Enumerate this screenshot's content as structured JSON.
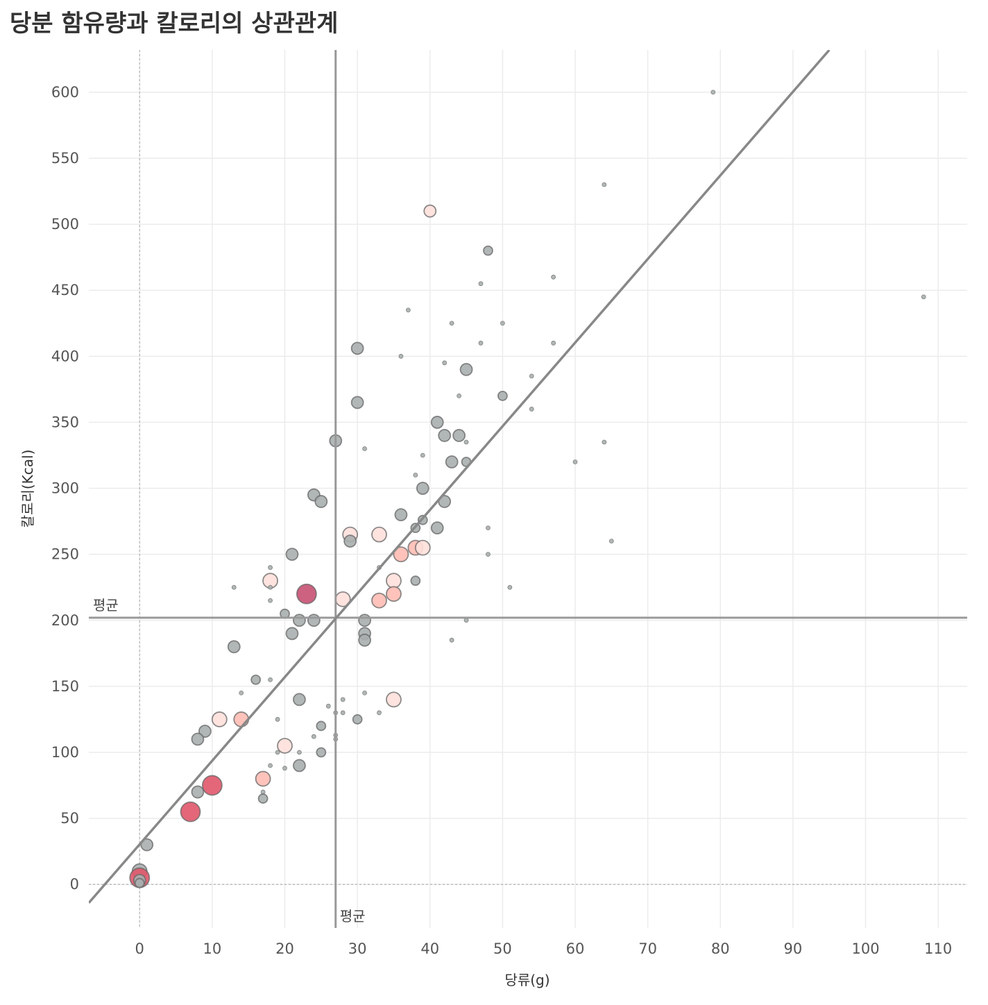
{
  "chart_data": {
    "type": "scatter",
    "title": "당분 함유량과 칼로리의 상관관계",
    "xlabel": "당류(g)",
    "ylabel": "칼로리(Kcal)",
    "xlim": [
      -7,
      114
    ],
    "ylim": [
      -33,
      632
    ],
    "xticks": [
      0,
      10,
      20,
      30,
      40,
      50,
      60,
      70,
      80,
      90,
      100,
      110
    ],
    "yticks": [
      0,
      50,
      100,
      150,
      200,
      250,
      300,
      350,
      400,
      450,
      500,
      550,
      600
    ],
    "grid": true,
    "mean_x": 27,
    "mean_y": 202,
    "mean_x_label": "평균",
    "mean_y_label": "평균",
    "trendline": {
      "x0": -7,
      "y0": -14,
      "x1": 95,
      "y1": 632,
      "color": "#888888"
    },
    "colors": {
      "gray": "#a9aeae",
      "pale": "#ffe0dc",
      "pink": "#ffbcb4",
      "red": "#e0566a",
      "magenta": "#c85072"
    },
    "points": [
      {
        "x": 79,
        "y": 600,
        "size": "xs",
        "color": "gray"
      },
      {
        "x": 64,
        "y": 530,
        "size": "xs",
        "color": "gray"
      },
      {
        "x": 108,
        "y": 445,
        "size": "xs",
        "color": "gray"
      },
      {
        "x": 40,
        "y": 510,
        "size": "m",
        "color": "pale"
      },
      {
        "x": 48,
        "y": 480,
        "size": "s",
        "color": "gray"
      },
      {
        "x": 57,
        "y": 460,
        "size": "xs",
        "color": "gray"
      },
      {
        "x": 47,
        "y": 455,
        "size": "xs",
        "color": "gray"
      },
      {
        "x": 37,
        "y": 435,
        "size": "xs",
        "color": "gray"
      },
      {
        "x": 43,
        "y": 425,
        "size": "xs",
        "color": "gray"
      },
      {
        "x": 50,
        "y": 425,
        "size": "xs",
        "color": "gray"
      },
      {
        "x": 47,
        "y": 410,
        "size": "xs",
        "color": "gray"
      },
      {
        "x": 57,
        "y": 410,
        "size": "xs",
        "color": "gray"
      },
      {
        "x": 30,
        "y": 406,
        "size": "m",
        "color": "gray"
      },
      {
        "x": 36,
        "y": 400,
        "size": "xs",
        "color": "gray"
      },
      {
        "x": 42,
        "y": 395,
        "size": "xs",
        "color": "gray"
      },
      {
        "x": 45,
        "y": 390,
        "size": "m",
        "color": "gray"
      },
      {
        "x": 54,
        "y": 385,
        "size": "xs",
        "color": "gray"
      },
      {
        "x": 50,
        "y": 370,
        "size": "s",
        "color": "gray"
      },
      {
        "x": 44,
        "y": 370,
        "size": "xs",
        "color": "gray"
      },
      {
        "x": 30,
        "y": 365,
        "size": "m",
        "color": "gray"
      },
      {
        "x": 54,
        "y": 360,
        "size": "xs",
        "color": "gray"
      },
      {
        "x": 41,
        "y": 350,
        "size": "m",
        "color": "gray"
      },
      {
        "x": 42,
        "y": 340,
        "size": "m",
        "color": "gray"
      },
      {
        "x": 44,
        "y": 340,
        "size": "m",
        "color": "gray"
      },
      {
        "x": 27,
        "y": 336,
        "size": "m",
        "color": "gray"
      },
      {
        "x": 45,
        "y": 335,
        "size": "xs",
        "color": "gray"
      },
      {
        "x": 64,
        "y": 335,
        "size": "xs",
        "color": "gray"
      },
      {
        "x": 31,
        "y": 330,
        "size": "xs",
        "color": "gray"
      },
      {
        "x": 39,
        "y": 325,
        "size": "xs",
        "color": "gray"
      },
      {
        "x": 43,
        "y": 320,
        "size": "m",
        "color": "gray"
      },
      {
        "x": 45,
        "y": 320,
        "size": "s",
        "color": "gray"
      },
      {
        "x": 60,
        "y": 320,
        "size": "xs",
        "color": "gray"
      },
      {
        "x": 38,
        "y": 310,
        "size": "xs",
        "color": "gray"
      },
      {
        "x": 39,
        "y": 300,
        "size": "m",
        "color": "gray"
      },
      {
        "x": 24,
        "y": 295,
        "size": "m",
        "color": "gray"
      },
      {
        "x": 25,
        "y": 290,
        "size": "m",
        "color": "gray"
      },
      {
        "x": 42,
        "y": 290,
        "size": "m",
        "color": "gray"
      },
      {
        "x": 36,
        "y": 280,
        "size": "m",
        "color": "gray"
      },
      {
        "x": 39,
        "y": 276,
        "size": "s",
        "color": "gray"
      },
      {
        "x": 38,
        "y": 270,
        "size": "s",
        "color": "gray"
      },
      {
        "x": 41,
        "y": 270,
        "size": "m",
        "color": "gray"
      },
      {
        "x": 48,
        "y": 270,
        "size": "xs",
        "color": "gray"
      },
      {
        "x": 29,
        "y": 265,
        "size": "l",
        "color": "pale"
      },
      {
        "x": 33,
        "y": 265,
        "size": "l",
        "color": "pale"
      },
      {
        "x": 29,
        "y": 260,
        "size": "m",
        "color": "gray"
      },
      {
        "x": 65,
        "y": 260,
        "size": "xs",
        "color": "gray"
      },
      {
        "x": 38,
        "y": 255,
        "size": "l",
        "color": "pink"
      },
      {
        "x": 39,
        "y": 255,
        "size": "l",
        "color": "pale"
      },
      {
        "x": 36,
        "y": 250,
        "size": "l",
        "color": "pink"
      },
      {
        "x": 21,
        "y": 250,
        "size": "m",
        "color": "gray"
      },
      {
        "x": 48,
        "y": 250,
        "size": "xs",
        "color": "gray"
      },
      {
        "x": 18,
        "y": 240,
        "size": "xs",
        "color": "gray"
      },
      {
        "x": 33,
        "y": 240,
        "size": "xs",
        "color": "gray"
      },
      {
        "x": 18,
        "y": 230,
        "size": "l",
        "color": "pale"
      },
      {
        "x": 35,
        "y": 230,
        "size": "l",
        "color": "pale"
      },
      {
        "x": 38,
        "y": 230,
        "size": "s",
        "color": "gray"
      },
      {
        "x": 13,
        "y": 225,
        "size": "xs",
        "color": "gray"
      },
      {
        "x": 18,
        "y": 225,
        "size": "xs",
        "color": "gray"
      },
      {
        "x": 51,
        "y": 225,
        "size": "xs",
        "color": "gray"
      },
      {
        "x": 23,
        "y": 220,
        "size": "xl",
        "color": "magenta"
      },
      {
        "x": 35,
        "y": 220,
        "size": "l",
        "color": "pink"
      },
      {
        "x": 28,
        "y": 216,
        "size": "l",
        "color": "pale"
      },
      {
        "x": 33,
        "y": 215,
        "size": "l",
        "color": "pink"
      },
      {
        "x": 18,
        "y": 215,
        "size": "xs",
        "color": "gray"
      },
      {
        "x": 20,
        "y": 205,
        "size": "s",
        "color": "gray"
      },
      {
        "x": 22,
        "y": 200,
        "size": "m",
        "color": "gray"
      },
      {
        "x": 24,
        "y": 200,
        "size": "m",
        "color": "gray"
      },
      {
        "x": 31,
        "y": 200,
        "size": "m",
        "color": "gray"
      },
      {
        "x": 45,
        "y": 200,
        "size": "xs",
        "color": "gray"
      },
      {
        "x": 21,
        "y": 190,
        "size": "m",
        "color": "gray"
      },
      {
        "x": 31,
        "y": 190,
        "size": "m",
        "color": "gray"
      },
      {
        "x": 31,
        "y": 185,
        "size": "m",
        "color": "gray"
      },
      {
        "x": 43,
        "y": 185,
        "size": "xs",
        "color": "gray"
      },
      {
        "x": 13,
        "y": 180,
        "size": "m",
        "color": "gray"
      },
      {
        "x": 16,
        "y": 155,
        "size": "s",
        "color": "gray"
      },
      {
        "x": 18,
        "y": 155,
        "size": "xs",
        "color": "gray"
      },
      {
        "x": 14,
        "y": 145,
        "size": "xs",
        "color": "gray"
      },
      {
        "x": 31,
        "y": 145,
        "size": "xs",
        "color": "gray"
      },
      {
        "x": 22,
        "y": 140,
        "size": "m",
        "color": "gray"
      },
      {
        "x": 28,
        "y": 140,
        "size": "xs",
        "color": "gray"
      },
      {
        "x": 35,
        "y": 140,
        "size": "l",
        "color": "pale"
      },
      {
        "x": 26,
        "y": 135,
        "size": "xs",
        "color": "gray"
      },
      {
        "x": 27,
        "y": 130,
        "size": "xs",
        "color": "gray"
      },
      {
        "x": 28,
        "y": 130,
        "size": "xs",
        "color": "gray"
      },
      {
        "x": 33,
        "y": 130,
        "size": "xs",
        "color": "gray"
      },
      {
        "x": 11,
        "y": 125,
        "size": "l",
        "color": "pale"
      },
      {
        "x": 14,
        "y": 125,
        "size": "l",
        "color": "pink"
      },
      {
        "x": 19,
        "y": 125,
        "size": "xs",
        "color": "gray"
      },
      {
        "x": 30,
        "y": 125,
        "size": "s",
        "color": "gray"
      },
      {
        "x": 25,
        "y": 120,
        "size": "s",
        "color": "gray"
      },
      {
        "x": 9,
        "y": 116,
        "size": "m",
        "color": "gray"
      },
      {
        "x": 27,
        "y": 113,
        "size": "xs",
        "color": "gray"
      },
      {
        "x": 24,
        "y": 112,
        "size": "xs",
        "color": "gray"
      },
      {
        "x": 8,
        "y": 110,
        "size": "m",
        "color": "gray"
      },
      {
        "x": 27,
        "y": 110,
        "size": "xs",
        "color": "gray"
      },
      {
        "x": 20,
        "y": 105,
        "size": "l",
        "color": "pale"
      },
      {
        "x": 19,
        "y": 100,
        "size": "xs",
        "color": "gray"
      },
      {
        "x": 22,
        "y": 100,
        "size": "xs",
        "color": "gray"
      },
      {
        "x": 25,
        "y": 100,
        "size": "s",
        "color": "gray"
      },
      {
        "x": 18,
        "y": 90,
        "size": "xs",
        "color": "gray"
      },
      {
        "x": 22,
        "y": 90,
        "size": "m",
        "color": "gray"
      },
      {
        "x": 20,
        "y": 88,
        "size": "xs",
        "color": "gray"
      },
      {
        "x": 17,
        "y": 80,
        "size": "l",
        "color": "pink"
      },
      {
        "x": 10,
        "y": 75,
        "size": "xl",
        "color": "red"
      },
      {
        "x": 8,
        "y": 70,
        "size": "m",
        "color": "gray"
      },
      {
        "x": 17,
        "y": 70,
        "size": "xs",
        "color": "gray"
      },
      {
        "x": 17,
        "y": 65,
        "size": "s",
        "color": "gray"
      },
      {
        "x": 7,
        "y": 55,
        "size": "xl",
        "color": "red"
      },
      {
        "x": 1,
        "y": 30,
        "size": "m",
        "color": "gray"
      },
      {
        "x": 0,
        "y": 10,
        "size": "l",
        "color": "gray"
      },
      {
        "x": 0,
        "y": 5,
        "size": "xl",
        "color": "red"
      },
      {
        "x": 0,
        "y": 3,
        "size": "m",
        "color": "gray"
      },
      {
        "x": 0,
        "y": 1,
        "size": "s",
        "color": "gray"
      }
    ]
  }
}
